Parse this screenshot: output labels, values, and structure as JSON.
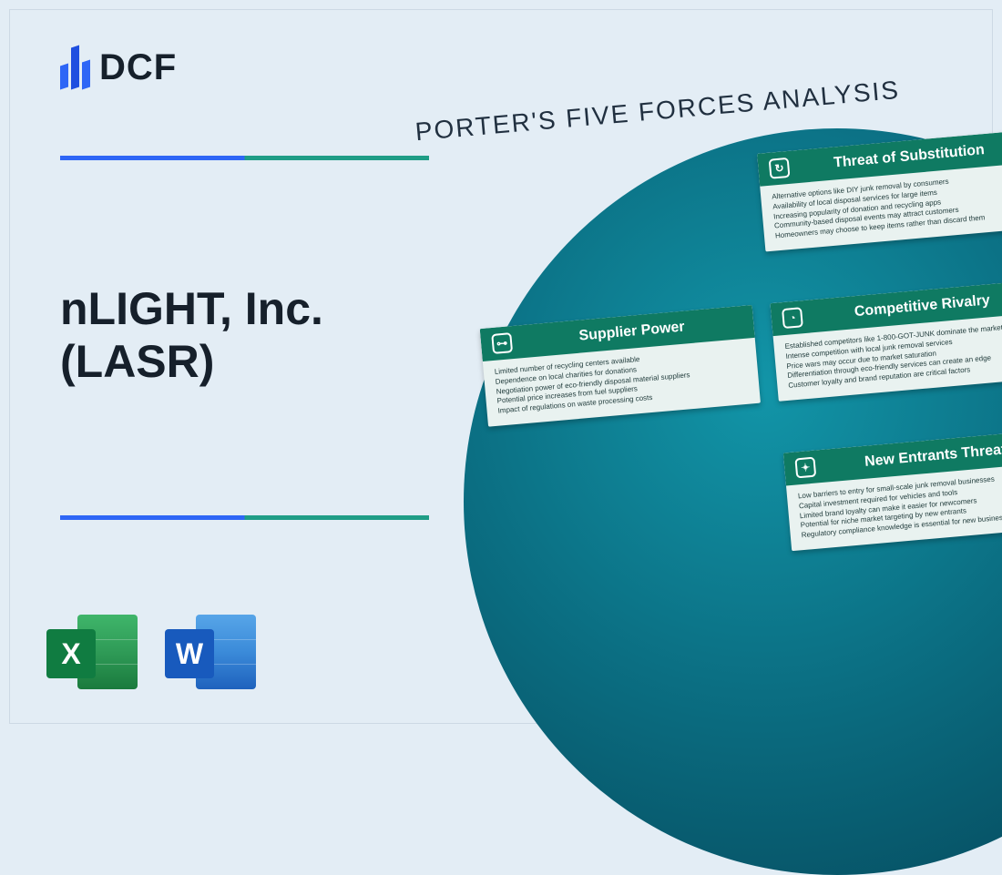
{
  "brand": {
    "name": "DCF"
  },
  "headline": "nLIGHT, Inc. (LASR)",
  "porter_title": "PORTER'S FIVE FORCES ANALYSIS",
  "icons": {
    "excel_letter": "X",
    "word_letter": "W"
  },
  "colors": {
    "page_bg": "#e3edf5",
    "rule_left": "#2e66f6",
    "rule_right": "#1f9d86",
    "card_header": "#0f7a62",
    "card_bg": "#e9f2f0",
    "orb_inner": "#1295a8",
    "orb_outer": "#044356"
  },
  "cards": [
    {
      "title": "Threat of Substitution",
      "icon": "↻",
      "items": [
        "Alternative options like DIY junk removal by consumers",
        "Availability of local disposal services for large items",
        "Increasing popularity of donation and recycling apps",
        "Community-based disposal events may attract customers",
        "Homeowners may choose to keep items rather than discard them"
      ]
    },
    {
      "title": "Supplier Power",
      "icon": "⊶",
      "items": [
        "Limited number of recycling centers available",
        "Dependence on local charities for donations",
        "Negotiation power of eco-friendly disposal material suppliers",
        "Potential price increases from fuel suppliers",
        "Impact of regulations on waste processing costs"
      ]
    },
    {
      "title": "Competitive Rivalry",
      "icon": "◔",
      "items": [
        "Established competitors like 1-800-GOT-JUNK dominate the market",
        "Intense competition with local junk removal services",
        "Price wars may occur due to market saturation",
        "Differentiation through eco-friendly services can create an edge",
        "Customer loyalty and brand reputation are critical factors"
      ]
    },
    {
      "title": "New Entrants Threat",
      "icon": "✦",
      "items": [
        "Low barriers to entry for small-scale junk removal businesses",
        "Capital investment required for vehicles and tools",
        "Limited brand loyalty can make it easier for newcomers",
        "Potential for niche market targeting by new entrants",
        "Regulatory compliance knowledge is essential for new businesses"
      ]
    }
  ]
}
